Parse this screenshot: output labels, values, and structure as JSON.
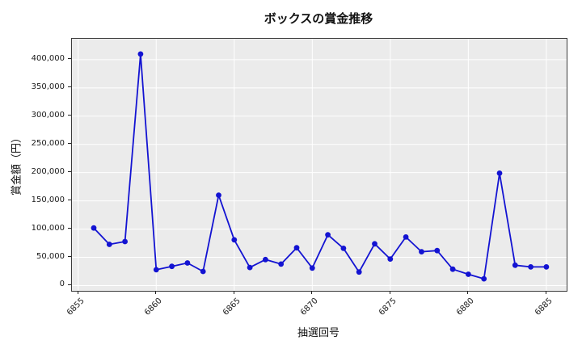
{
  "chart_data": {
    "type": "line",
    "title": "ボックスの賞金推移",
    "xlabel": "抽選回号",
    "ylabel": "賞金額（円）",
    "x": [
      6856,
      6857,
      6858,
      6859,
      6860,
      6861,
      6862,
      6863,
      6864,
      6865,
      6866,
      6867,
      6868,
      6869,
      6870,
      6871,
      6872,
      6873,
      6874,
      6875,
      6876,
      6877,
      6878,
      6879,
      6880,
      6881,
      6882,
      6883,
      6884,
      6885
    ],
    "values": [
      102000,
      73000,
      78000,
      410000,
      28000,
      34000,
      40000,
      25000,
      160000,
      81000,
      32000,
      46000,
      38000,
      67000,
      31000,
      90000,
      66000,
      24000,
      74000,
      47000,
      86000,
      60000,
      62000,
      29000,
      20000,
      12000,
      199000,
      36000,
      33000,
      33000
    ],
    "xticks": [
      6855,
      6860,
      6865,
      6870,
      6875,
      6880,
      6885
    ],
    "yticks": [
      0,
      50000,
      100000,
      150000,
      200000,
      250000,
      300000,
      350000,
      400000
    ],
    "xlim": [
      6854.6,
      6886.3
    ],
    "ylim": [
      -9300,
      437000
    ],
    "grid": true,
    "legend_position": "none",
    "series_color": "#1313D2",
    "plot_background": "#EBEBEB",
    "grid_color": "#FFFFFF",
    "tick_color": "#222222",
    "spine_color": "#3C3C3C"
  }
}
